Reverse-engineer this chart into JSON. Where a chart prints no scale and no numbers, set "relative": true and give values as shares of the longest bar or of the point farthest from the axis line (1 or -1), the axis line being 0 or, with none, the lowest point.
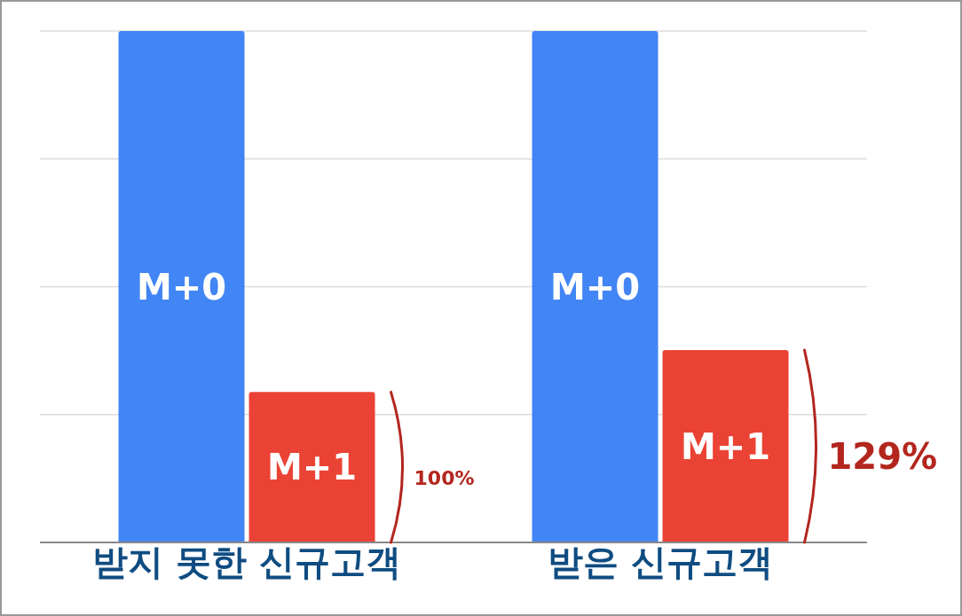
{
  "chart_data": {
    "type": "bar",
    "relative": true,
    "grid": "y",
    "categories": [
      "받지 못한 신규고객",
      "받은 신규고객"
    ],
    "series": [
      {
        "name": "M+0",
        "color": "#4285f4",
        "values": [
          1,
          1
        ]
      },
      {
        "name": "M+1",
        "color": "#ea4335",
        "values": [
          0.294,
          0.376
        ]
      }
    ],
    "annotations": [
      "100%",
      "129%"
    ]
  }
}
